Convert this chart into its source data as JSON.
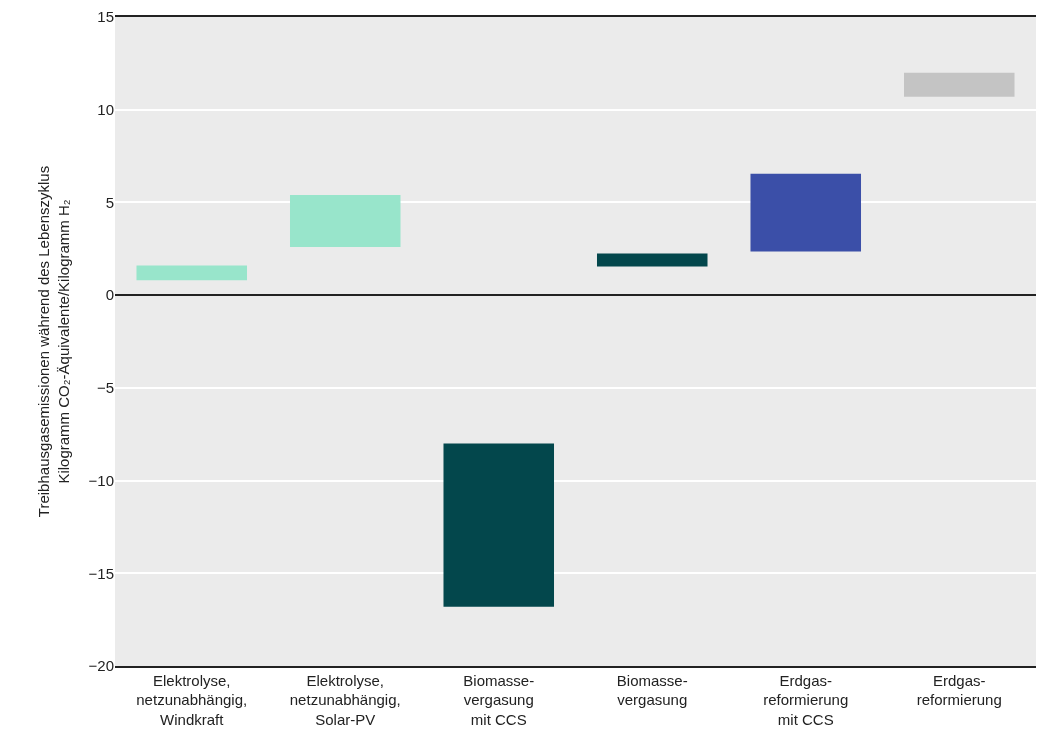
{
  "chart_data": {
    "type": "bar",
    "ylabel": "Treibhausgasemissionen während des Lebenszyklus\nKilogramm CO₂-Äquivalente/Kilogramm H₂",
    "categories": [
      "Elektrolyse,\nnetzunabhängig,\nWindkraft",
      "Elektrolyse,\nnetzunabhängig,\nSolar-PV",
      "Biomasse-\nvergasung\nmit CCS",
      "Biomasse-\nvergasung",
      "Erdgas-\nreformierung\nmit CCS",
      "Erdgas-\nreformierung"
    ],
    "base": [
      0.8,
      2.6,
      -16.8,
      1.55,
      2.35,
      10.7
    ],
    "values": [
      0.8,
      2.8,
      8.8,
      0.7,
      4.2,
      1.3
    ],
    "colors": [
      "#98e5cb",
      "#98e5cb",
      "#03474c",
      "#03474c",
      "#3b4fa8",
      "#c4c4c4"
    ],
    "ylim": [
      -20,
      15
    ],
    "yticks": [
      {
        "value": -20,
        "label": "−20"
      },
      {
        "value": -15,
        "label": "−15"
      },
      {
        "value": -10,
        "label": "−10"
      },
      {
        "value": -5,
        "label": "−5"
      },
      0,
      5,
      10,
      15
    ],
    "grid": "y"
  }
}
